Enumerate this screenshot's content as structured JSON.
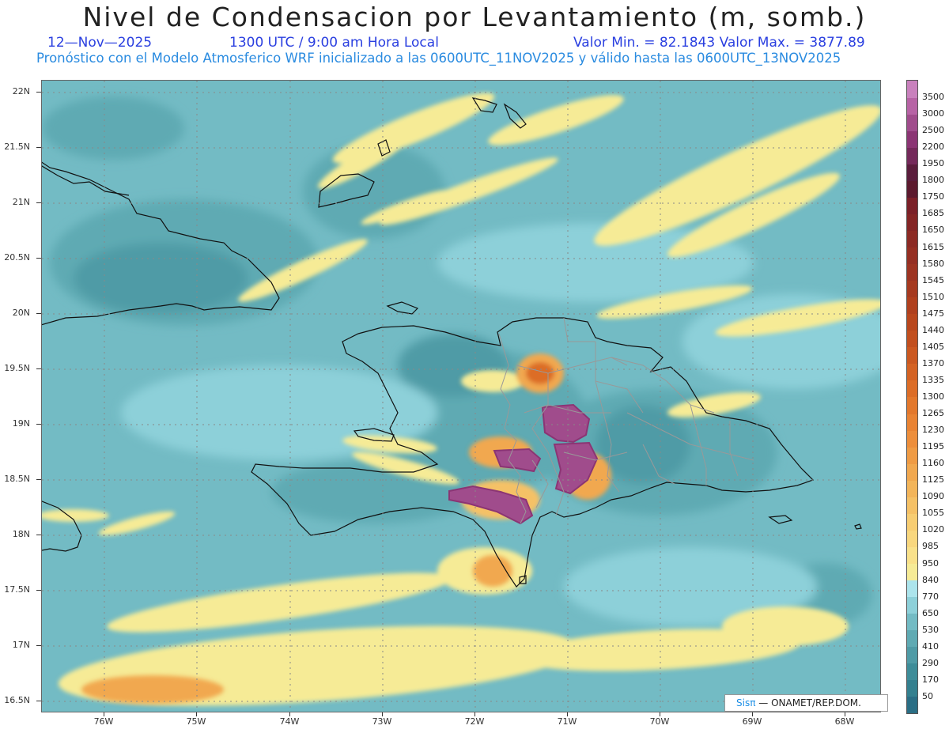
{
  "header": {
    "title": "Nivel de Condensacion por Levantamiento (m, somb.)",
    "date": "12—Nov—2025",
    "time": "1300 UTC / 9:00 am Hora Local",
    "minmax": "Valor Min. = 82.1843  Valor Max. = 3877.89",
    "forecast_line": "Pronóstico con el Modelo Atmosferico WRF inicializado a las 0600UTC_11NOV2025 y válido hasta las  0600UTC_13NOV2025"
  },
  "map": {
    "lat_labels": [
      "22N",
      "21.5N",
      "21N",
      "20.5N",
      "20N",
      "19.5N",
      "19N",
      "18.5N",
      "18N",
      "17.5N",
      "17N",
      "16.5N"
    ],
    "lon_labels": [
      "76W",
      "75W",
      "74W",
      "73W",
      "72W",
      "71W",
      "70W",
      "69W",
      "68W"
    ]
  },
  "legend": {
    "levels": [
      "50",
      "170",
      "290",
      "410",
      "530",
      "650",
      "770",
      "840",
      "950",
      "985",
      "1020",
      "1055",
      "1090",
      "1125",
      "1160",
      "1195",
      "1230",
      "1265",
      "1300",
      "1335",
      "1370",
      "1405",
      "1440",
      "1475",
      "1510",
      "1545",
      "1580",
      "1615",
      "1650",
      "1685",
      "1750",
      "1800",
      "1950",
      "2200",
      "2500",
      "3000",
      "3500"
    ],
    "colors": [
      "#2a6e85",
      "#34808f",
      "#3e8d99",
      "#4f9ba6",
      "#5faab3",
      "#73bbc4",
      "#8dd0d9",
      "#ace4ec",
      "#f6eb96",
      "#f9e18a",
      "#f8d77e",
      "#f7cd72",
      "#f5c166",
      "#f3b55a",
      "#f1a84f",
      "#ef9b44",
      "#ed8e3b",
      "#e98333",
      "#e3782c",
      "#dc6d27",
      "#d46223",
      "#cb5820",
      "#c24f1e",
      "#b9471d",
      "#b0401e",
      "#a63a20",
      "#9d3422",
      "#952f23",
      "#8c2a24",
      "#842525",
      "#7b2028",
      "#5c1a2e",
      "#5a1d3c",
      "#74295a",
      "#8b3574",
      "#a04c8c",
      "#b763a5",
      "#c981bd"
    ]
  },
  "credit": {
    "brand": "Sisπ",
    "org": " — ONAMET/REP.DOM."
  }
}
